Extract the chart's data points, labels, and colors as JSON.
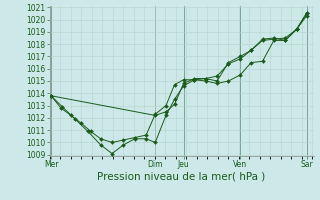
{
  "xlabel": "Pression niveau de la mer( hPa )",
  "bg_color": "#cce8e8",
  "grid_color_minor": "#b8d4cc",
  "grid_color_major": "#6a9a8a",
  "line_color": "#1a5a1a",
  "ylim_min": 1009,
  "ylim_max": 1021,
  "yticks": [
    1009,
    1010,
    1011,
    1012,
    1013,
    1014,
    1015,
    1016,
    1017,
    1018,
    1019,
    1020,
    1021
  ],
  "xlim_min": 0.0,
  "xlim_max": 9.3,
  "xtick_pos": [
    0.05,
    3.72,
    4.72,
    6.72,
    9.05
  ],
  "xtick_labels": [
    "Mer",
    "Dim",
    "Jeu",
    "Ven",
    "Sar"
  ],
  "vline_x": [
    0.05,
    3.72,
    4.72,
    6.72,
    9.05
  ],
  "series1_x": [
    0.05,
    0.4,
    0.75,
    1.1,
    1.45,
    1.8,
    2.2,
    2.6,
    3.0,
    3.4,
    3.72,
    4.1,
    4.4,
    4.72,
    5.1,
    5.5,
    5.9,
    6.3,
    6.72,
    7.1,
    7.5,
    7.9,
    8.3,
    8.7,
    9.05
  ],
  "series1_y": [
    1013.8,
    1012.8,
    1012.2,
    1011.6,
    1010.9,
    1010.3,
    1010.0,
    1010.2,
    1010.4,
    1010.6,
    1012.3,
    1013.0,
    1014.7,
    1015.1,
    1015.1,
    1015.0,
    1014.8,
    1015.0,
    1015.5,
    1016.5,
    1016.6,
    1018.3,
    1018.3,
    1019.2,
    1020.3
  ],
  "series2_x": [
    0.05,
    0.45,
    0.9,
    1.35,
    1.8,
    2.2,
    2.6,
    3.0,
    3.4,
    3.72,
    4.1,
    4.4,
    4.72,
    5.1,
    5.5,
    5.9,
    6.3,
    6.72,
    7.1,
    7.5,
    7.9,
    8.3,
    8.7,
    9.05
  ],
  "series2_y": [
    1013.8,
    1012.9,
    1011.9,
    1010.9,
    1009.8,
    1009.1,
    1009.8,
    1010.3,
    1010.3,
    1010.0,
    1012.2,
    1013.5,
    1014.6,
    1015.1,
    1015.2,
    1015.4,
    1016.4,
    1016.8,
    1017.5,
    1018.3,
    1018.4,
    1018.5,
    1019.2,
    1020.5
  ],
  "series3_x": [
    0.05,
    3.72,
    4.1,
    4.4,
    4.72,
    5.1,
    5.5,
    5.9,
    6.3,
    6.72,
    7.1,
    7.5,
    7.9,
    8.3,
    8.7,
    9.05
  ],
  "series3_y": [
    1013.8,
    1012.2,
    1012.5,
    1013.1,
    1014.8,
    1015.2,
    1015.2,
    1015.0,
    1016.5,
    1017.0,
    1017.5,
    1018.4,
    1018.5,
    1018.3,
    1019.2,
    1020.5
  ],
  "tick_fontsize": 5.5,
  "xlabel_fontsize": 7.5
}
